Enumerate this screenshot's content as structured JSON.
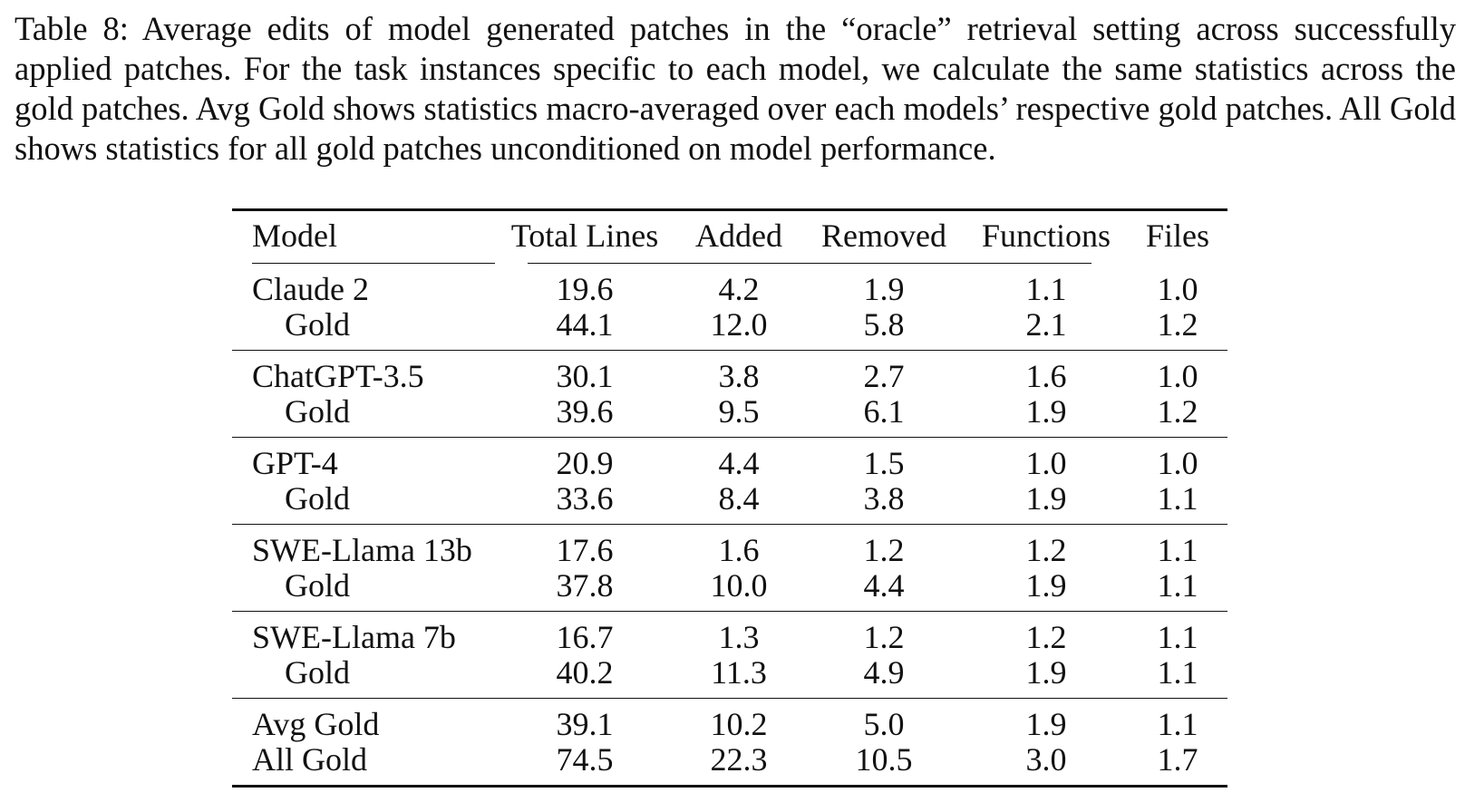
{
  "caption": "Table 8: Average edits of model generated patches in the “oracle” retrieval setting across successfully applied patches. For the task instances specific to each model, we calculate the same statistics across the gold patches. Avg Gold shows statistics macro-averaged over each models’ respective gold patches. All Gold shows statistics for all gold patches unconditioned on model performance.",
  "table": {
    "headers": [
      "Model",
      "Total Lines",
      "Added",
      "Removed",
      "Functions",
      "Files"
    ],
    "groups": [
      {
        "rows": [
          {
            "model": "Claude 2",
            "total": "19.6",
            "added": "4.2",
            "removed": "1.9",
            "functions": "1.1",
            "files": "1.0"
          },
          {
            "model": "Gold",
            "total": "44.1",
            "added": "12.0",
            "removed": "5.8",
            "functions": "2.1",
            "files": "1.2"
          }
        ]
      },
      {
        "rows": [
          {
            "model": "ChatGPT-3.5",
            "total": "30.1",
            "added": "3.8",
            "removed": "2.7",
            "functions": "1.6",
            "files": "1.0"
          },
          {
            "model": "Gold",
            "total": "39.6",
            "added": "9.5",
            "removed": "6.1",
            "functions": "1.9",
            "files": "1.2"
          }
        ]
      },
      {
        "rows": [
          {
            "model": "GPT-4",
            "total": "20.9",
            "added": "4.4",
            "removed": "1.5",
            "functions": "1.0",
            "files": "1.0"
          },
          {
            "model": "Gold",
            "total": "33.6",
            "added": "8.4",
            "removed": "3.8",
            "functions": "1.9",
            "files": "1.1"
          }
        ]
      },
      {
        "rows": [
          {
            "model": "SWE-Llama 13b",
            "total": "17.6",
            "added": "1.6",
            "removed": "1.2",
            "functions": "1.2",
            "files": "1.1"
          },
          {
            "model": "Gold",
            "total": "37.8",
            "added": "10.0",
            "removed": "4.4",
            "functions": "1.9",
            "files": "1.1"
          }
        ]
      },
      {
        "rows": [
          {
            "model": "SWE-Llama 7b",
            "total": "16.7",
            "added": "1.3",
            "removed": "1.2",
            "functions": "1.2",
            "files": "1.1"
          },
          {
            "model": "Gold",
            "total": "40.2",
            "added": "11.3",
            "removed": "4.9",
            "functions": "1.9",
            "files": "1.1"
          }
        ]
      },
      {
        "rows": [
          {
            "model": "Avg Gold",
            "total": "39.1",
            "added": "10.2",
            "removed": "5.0",
            "functions": "1.9",
            "files": "1.1"
          },
          {
            "model": "All Gold",
            "total": "74.5",
            "added": "22.3",
            "removed": "10.5",
            "functions": "3.0",
            "files": "1.7"
          }
        ]
      }
    ]
  }
}
